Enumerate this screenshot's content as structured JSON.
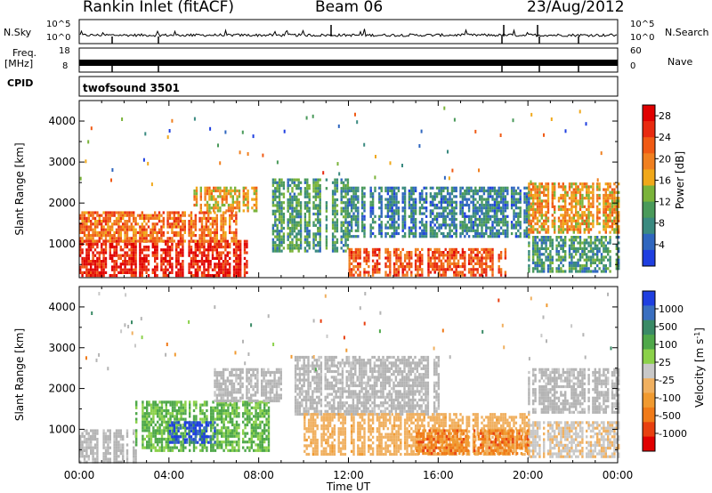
{
  "header": {
    "station": "Rankin Inlet (fitACF)",
    "beam": "Beam 06",
    "date": "23/Aug/2012"
  },
  "panels": {
    "nsky": {
      "left_label": "N.Sky",
      "left_ticks": [
        "10^5",
        "10^0"
      ],
      "right_ticks": [
        "10^5",
        "10^0"
      ],
      "right_label": "N.Search"
    },
    "freq": {
      "left_label_1": "Freq.",
      "left_label_2": "[MHz]",
      "left_ticks": [
        "18",
        "8"
      ],
      "right_ticks": [
        "60",
        "0"
      ],
      "right_label": "Nave"
    },
    "cpid": {
      "label": "CPID",
      "value": "twofsound 3501"
    }
  },
  "colors": {
    "power_scale": [
      "#1f3fe0",
      "#2f66bf",
      "#3a8a80",
      "#4a9a5a",
      "#7ab33a",
      "#f0a81a",
      "#f08020",
      "#f05a14",
      "#e82a10",
      "#e00000"
    ],
    "velocity_scale": [
      "#1f3fe0",
      "#3a6fc0",
      "#3a8a66",
      "#4fa84a",
      "#8bd14a",
      "#c8c8c8",
      "#f0b060",
      "#f09a30",
      "#f07a18",
      "#e84010",
      "#e00000"
    ],
    "ground_scatter": "#b4b4b4"
  },
  "chart_data": [
    {
      "type": "heatmap",
      "name": "power",
      "xlabel": "",
      "ylabel": "Slant Range [km]",
      "ylim": [
        180,
        4500
      ],
      "yticks": [
        "1000",
        "2000",
        "3000",
        "4000"
      ],
      "xticks": [
        "00:00",
        "04:00",
        "08:00",
        "12:00",
        "16:00",
        "20:00",
        "00:00"
      ],
      "colorbar": {
        "label": "Power [dB]",
        "ticks": [
          "4",
          "8",
          "12",
          "16",
          "20",
          "24",
          "28"
        ],
        "range": [
          0,
          30
        ]
      },
      "regions": [
        {
          "t0": 0.0,
          "t1": 7.5,
          "r0": 200,
          "r1": 1100,
          "value": 27
        },
        {
          "t0": 0.0,
          "t1": 7.0,
          "r0": 1100,
          "r1": 1800,
          "value": 21
        },
        {
          "t0": 5.0,
          "t1": 8.0,
          "r0": 1800,
          "r1": 2400,
          "value": 17
        },
        {
          "t0": 8.5,
          "t1": 12.0,
          "r0": 800,
          "r1": 2600,
          "value": 10
        },
        {
          "t0": 12.0,
          "t1": 20.0,
          "r0": 1200,
          "r1": 2400,
          "value": 7
        },
        {
          "t0": 12.0,
          "t1": 19.0,
          "r0": 250,
          "r1": 900,
          "value": 23
        },
        {
          "t0": 20.0,
          "t1": 24.0,
          "r0": 1300,
          "r1": 2500,
          "value": 18
        },
        {
          "t0": 20.0,
          "t1": 24.0,
          "r0": 300,
          "r1": 1200,
          "value": 9
        }
      ]
    },
    {
      "type": "heatmap",
      "name": "velocity",
      "xlabel": "Time UT",
      "ylabel": "Slant Range [km]",
      "ylim": [
        180,
        4500
      ],
      "yticks": [
        "1000",
        "2000",
        "3000",
        "4000"
      ],
      "xticks": [
        "00:00",
        "04:00",
        "08:00",
        "12:00",
        "16:00",
        "20:00",
        "00:00"
      ],
      "colorbar": {
        "label": "Velocity [m s",
        "label_sup": "-1",
        "ticks": [
          "1000",
          "500",
          "100",
          "25",
          "-25",
          "-100",
          "-500",
          "-1000"
        ],
        "range": [
          -1000,
          1000
        ]
      },
      "regions": [
        {
          "t0": 0.0,
          "t1": 2.5,
          "r0": 200,
          "r1": 1000,
          "value": 0,
          "ground": true
        },
        {
          "t0": 2.5,
          "t1": 8.5,
          "r0": 500,
          "r1": 1700,
          "value": 300
        },
        {
          "t0": 4.0,
          "t1": 6.0,
          "r0": 700,
          "r1": 1200,
          "value": 900
        },
        {
          "t0": 6.0,
          "t1": 9.0,
          "r0": 1700,
          "r1": 2500,
          "value": 0,
          "ground": true
        },
        {
          "t0": 9.5,
          "t1": 16.0,
          "r0": 1400,
          "r1": 2800,
          "value": 0,
          "ground": true
        },
        {
          "t0": 10.0,
          "t1": 20.0,
          "r0": 400,
          "r1": 1400,
          "value": -200
        },
        {
          "t0": 15.0,
          "t1": 20.0,
          "r0": 400,
          "r1": 1000,
          "value": -500
        },
        {
          "t0": 20.0,
          "t1": 24.0,
          "r0": 1400,
          "r1": 2500,
          "value": 0,
          "ground": true
        },
        {
          "t0": 20.0,
          "t1": 24.0,
          "r0": 300,
          "r1": 1200,
          "value": -80
        }
      ]
    }
  ]
}
